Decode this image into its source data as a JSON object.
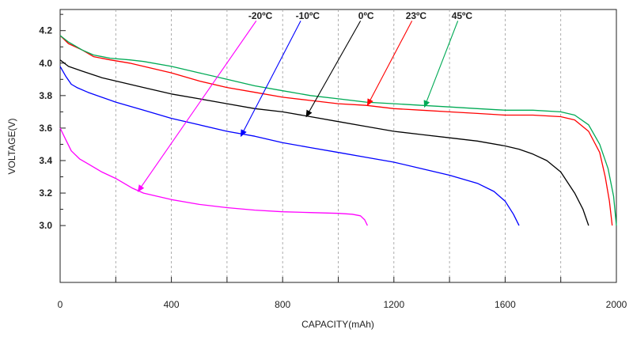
{
  "chart_data": {
    "type": "line",
    "title": "",
    "xlabel": "CAPACITY(mAh)",
    "ylabel": "VOLTAGE(V)",
    "xlim": [
      0,
      2000
    ],
    "ylim": [
      2.65,
      4.33
    ],
    "x_ticks": [
      "0",
      "400",
      "800",
      "1200",
      "1600",
      "2000"
    ],
    "y_ticks": [
      "3.0",
      "3.2",
      "3.4",
      "3.6",
      "3.8",
      "4.0",
      "4.2"
    ],
    "grid": "vertical dashed",
    "series": [
      {
        "name": "-20ºC",
        "color": "#ff00ff",
        "label_pos": [
          720,
          4.29
        ],
        "arrow_from": [
          705,
          4.26
        ],
        "arrow_to": [
          280,
          3.21
        ],
        "x": [
          0,
          20,
          40,
          70,
          100,
          150,
          200,
          260,
          300,
          400,
          500,
          600,
          700,
          800,
          900,
          1000,
          1050,
          1080,
          1095,
          1105
        ],
        "y": [
          3.6,
          3.53,
          3.46,
          3.41,
          3.38,
          3.33,
          3.29,
          3.23,
          3.2,
          3.16,
          3.13,
          3.11,
          3.095,
          3.085,
          3.08,
          3.075,
          3.07,
          3.06,
          3.035,
          3.0
        ]
      },
      {
        "name": "-10ºC",
        "color": "#0000ff",
        "label_pos": [
          890,
          4.29
        ],
        "arrow_from": [
          865,
          4.26
        ],
        "arrow_to": [
          650,
          3.55
        ],
        "x": [
          0,
          20,
          40,
          60,
          100,
          200,
          300,
          400,
          500,
          600,
          700,
          800,
          900,
          1000,
          1100,
          1200,
          1300,
          1400,
          1500,
          1560,
          1600,
          1630,
          1650
        ],
        "y": [
          3.98,
          3.92,
          3.87,
          3.85,
          3.82,
          3.76,
          3.71,
          3.66,
          3.62,
          3.58,
          3.55,
          3.51,
          3.48,
          3.45,
          3.42,
          3.39,
          3.35,
          3.31,
          3.26,
          3.21,
          3.15,
          3.07,
          3.0
        ]
      },
      {
        "name": "0ºC",
        "color": "#000000",
        "label_pos": [
          1100,
          4.29
        ],
        "arrow_from": [
          1080,
          4.26
        ],
        "arrow_to": [
          885,
          3.67
        ],
        "x": [
          0,
          30,
          80,
          150,
          200,
          300,
          400,
          500,
          600,
          700,
          800,
          900,
          1000,
          1100,
          1200,
          1300,
          1400,
          1500,
          1600,
          1650,
          1700,
          1750,
          1800,
          1850,
          1880,
          1900
        ],
        "y": [
          4.02,
          3.98,
          3.95,
          3.91,
          3.89,
          3.85,
          3.81,
          3.78,
          3.75,
          3.72,
          3.7,
          3.67,
          3.64,
          3.61,
          3.58,
          3.56,
          3.54,
          3.52,
          3.49,
          3.47,
          3.44,
          3.4,
          3.33,
          3.2,
          3.1,
          3.0
        ]
      },
      {
        "name": "23ºC",
        "color": "#ff0000",
        "label_pos": [
          1280,
          4.29
        ],
        "arrow_from": [
          1265,
          4.26
        ],
        "arrow_to": [
          1105,
          3.74
        ],
        "x": [
          0,
          30,
          80,
          120,
          180,
          250,
          300,
          400,
          500,
          600,
          700,
          800,
          900,
          1000,
          1100,
          1200,
          1300,
          1400,
          1500,
          1600,
          1700,
          1800,
          1850,
          1900,
          1940,
          1960,
          1975,
          1985
        ],
        "y": [
          4.17,
          4.12,
          4.08,
          4.04,
          4.02,
          4.0,
          3.98,
          3.94,
          3.89,
          3.85,
          3.82,
          3.79,
          3.77,
          3.75,
          3.74,
          3.72,
          3.71,
          3.7,
          3.69,
          3.68,
          3.68,
          3.67,
          3.65,
          3.58,
          3.45,
          3.3,
          3.15,
          3.0
        ]
      },
      {
        "name": "45ºC",
        "color": "#00aa55",
        "label_pos": [
          1445,
          4.29
        ],
        "arrow_from": [
          1430,
          4.26
        ],
        "arrow_to": [
          1310,
          3.73
        ],
        "x": [
          0,
          30,
          80,
          120,
          180,
          250,
          300,
          400,
          500,
          600,
          700,
          800,
          900,
          1000,
          1100,
          1200,
          1300,
          1400,
          1500,
          1600,
          1700,
          1800,
          1850,
          1900,
          1940,
          1970,
          1990,
          2000
        ],
        "y": [
          4.17,
          4.13,
          4.08,
          4.05,
          4.03,
          4.02,
          4.01,
          3.98,
          3.94,
          3.9,
          3.86,
          3.83,
          3.8,
          3.78,
          3.76,
          3.75,
          3.74,
          3.73,
          3.72,
          3.71,
          3.71,
          3.7,
          3.68,
          3.62,
          3.5,
          3.35,
          3.18,
          3.0
        ]
      }
    ]
  }
}
